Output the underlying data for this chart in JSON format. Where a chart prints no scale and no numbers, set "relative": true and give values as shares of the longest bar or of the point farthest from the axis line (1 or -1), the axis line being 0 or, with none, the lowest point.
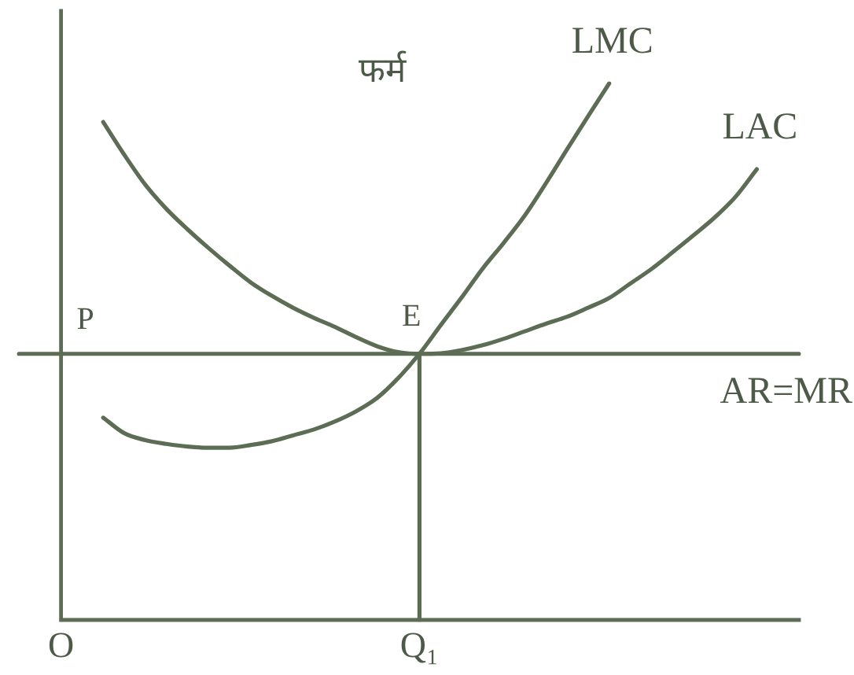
{
  "chart_data": {
    "type": "line",
    "title": "फर्म",
    "relative": true,
    "categories": [
      null,
      null,
      "O",
      null,
      null,
      null,
      null,
      null,
      null,
      null,
      null,
      null,
      null,
      null,
      null,
      null,
      null,
      null,
      null,
      "Q₁",
      null,
      null,
      null,
      null,
      null,
      null,
      null,
      null,
      null,
      null,
      null,
      null,
      null,
      null,
      null,
      null,
      null,
      null
    ],
    "annotations": [
      {
        "text": "P",
        "x": "O",
        "y": 0.496
      },
      {
        "text": "E",
        "x": "Q₁",
        "y": 0.496
      }
    ],
    "series": [
      {
        "name": "LMC",
        "color": "#5d6d55",
        "values": [
          null,
          null,
          null,
          null,
          0.377,
          0.348,
          0.335,
          0.328,
          0.323,
          0.321,
          0.321,
          0.326,
          0.333,
          0.344,
          0.355,
          0.37,
          0.389,
          0.414,
          0.451,
          0.496,
          0.549,
          0.601,
          0.655,
          0.703,
          0.754,
          0.814,
          0.877,
          0.939,
          1,
          null,
          null,
          null,
          null,
          null,
          null,
          null,
          null,
          null
        ]
      },
      {
        "name": "LAC",
        "color": "#5d6d55",
        "values": [
          null,
          null,
          null,
          null,
          0.928,
          0.867,
          0.811,
          0.766,
          0.728,
          0.693,
          0.66,
          0.629,
          0.604,
          0.582,
          0.563,
          0.546,
          0.527,
          0.51,
          0.499,
          0.496,
          0.497,
          0.503,
          0.512,
          0.524,
          0.538,
          0.552,
          0.565,
          0.582,
          0.6,
          0.627,
          0.654,
          0.685,
          0.717,
          0.75,
          0.789,
          0.84,
          null,
          null
        ]
      },
      {
        "name": "AR=MR",
        "color": "#5d6d55",
        "values": [
          0.496,
          0.496,
          0.496,
          0.496,
          0.496,
          0.496,
          0.496,
          0.496,
          0.496,
          0.496,
          0.496,
          0.496,
          0.496,
          0.496,
          0.496,
          0.496,
          0.496,
          0.496,
          0.496,
          0.496,
          0.496,
          0.496,
          0.496,
          0.496,
          0.496,
          0.496,
          0.496,
          0.496,
          0.496,
          0.496,
          0.496,
          0.496,
          0.496,
          0.496,
          0.496,
          0.496,
          0.496,
          0.496
        ]
      },
      {
        "color": "#5d6d55",
        "x": [
          "Q₁",
          "Q₁"
        ],
        "values": [
          0,
          0.496
        ]
      }
    ]
  }
}
